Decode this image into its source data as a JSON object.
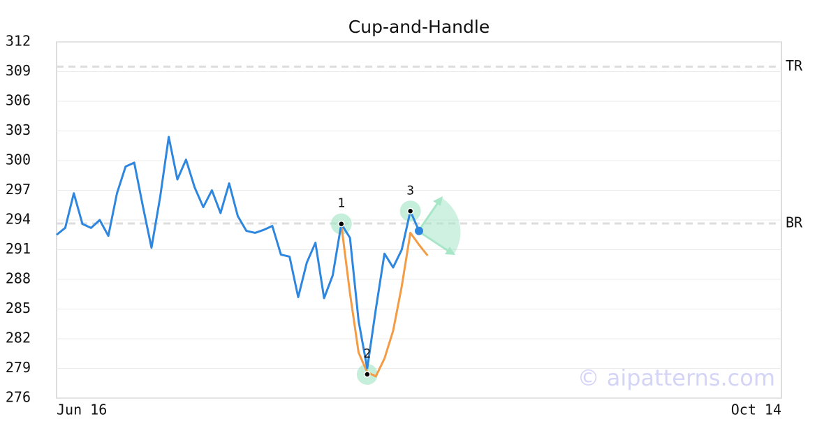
{
  "chart_data": {
    "type": "line",
    "title": "Cup-and-Handle",
    "categories": [
      "Jun 16",
      null,
      null,
      null,
      null,
      null,
      null,
      null,
      null,
      null,
      null,
      null,
      null,
      null,
      null,
      null,
      null,
      null,
      null,
      null,
      null,
      null,
      null,
      null,
      null,
      null,
      null,
      null,
      null,
      null,
      null,
      null,
      null,
      null,
      null,
      null,
      null,
      null,
      null,
      null,
      null,
      null,
      null,
      null,
      null,
      null,
      null,
      null,
      null,
      null,
      null,
      null,
      null,
      null,
      null,
      null,
      null,
      null,
      null,
      null,
      null,
      null,
      null,
      null,
      null,
      null,
      null,
      null,
      null,
      null,
      null,
      null,
      null,
      null,
      null,
      null,
      null,
      null,
      null,
      null,
      null,
      null,
      null,
      null,
      "Oct 14"
    ],
    "series": [
      {
        "color": "#2e86de",
        "values": [
          292.5,
          293.2,
          296.7,
          293.6,
          293.2,
          294.0,
          292.4,
          296.7,
          299.4,
          299.8,
          295.4,
          291.2,
          296.3,
          302.4,
          298.1,
          300.1,
          297.3,
          295.3,
          297.0,
          294.7,
          297.7,
          294.4,
          292.9,
          292.7,
          293.0,
          293.4,
          290.5,
          290.3,
          286.2,
          289.7,
          291.7,
          286.1,
          288.4,
          293.6,
          292.2,
          283.8,
          279.0,
          285.0,
          290.6,
          289.2,
          291.0,
          294.9,
          292.9,
          null,
          null,
          null,
          null,
          null,
          null,
          null,
          null,
          null,
          null,
          null,
          null,
          null,
          null,
          null,
          null,
          null,
          null,
          null,
          null,
          null,
          null,
          null,
          null,
          null,
          null,
          null,
          null,
          null,
          null,
          null,
          null,
          null,
          null,
          null,
          null,
          null,
          null,
          null,
          null,
          null,
          null
        ]
      },
      {
        "color": "#f39c45",
        "values": [
          null,
          null,
          null,
          null,
          null,
          null,
          null,
          null,
          null,
          null,
          null,
          null,
          null,
          null,
          null,
          null,
          null,
          null,
          null,
          null,
          null,
          null,
          null,
          null,
          null,
          null,
          null,
          null,
          null,
          null,
          null,
          null,
          null,
          293.5,
          286.6,
          280.6,
          278.6,
          278.2,
          280.0,
          282.8,
          287.3,
          292.7,
          291.5,
          290.4,
          null,
          null,
          null,
          null,
          null,
          null,
          null,
          null,
          null,
          null,
          null,
          null,
          null,
          null,
          null,
          null,
          null,
          null,
          null,
          null,
          null,
          null,
          null,
          null,
          null,
          null,
          null,
          null,
          null,
          null,
          null,
          null,
          null,
          null,
          null,
          null,
          null,
          null,
          null,
          null,
          null
        ]
      }
    ],
    "pivots": [
      {
        "label": "1",
        "x": 33,
        "value": 293.6
      },
      {
        "label": "2",
        "x": 36,
        "value": 278.4
      },
      {
        "label": "3",
        "x": 41,
        "value": 294.9
      }
    ],
    "levels": [
      {
        "label": "TR",
        "value": 309.5
      },
      {
        "label": "BR",
        "value": 293.65
      }
    ],
    "ylim": [
      276,
      312
    ],
    "yticks": [
      276,
      279,
      282,
      285,
      288,
      291,
      294,
      297,
      300,
      303,
      306,
      309,
      312
    ],
    "grid": true,
    "watermark": "© aipatterns.com"
  }
}
